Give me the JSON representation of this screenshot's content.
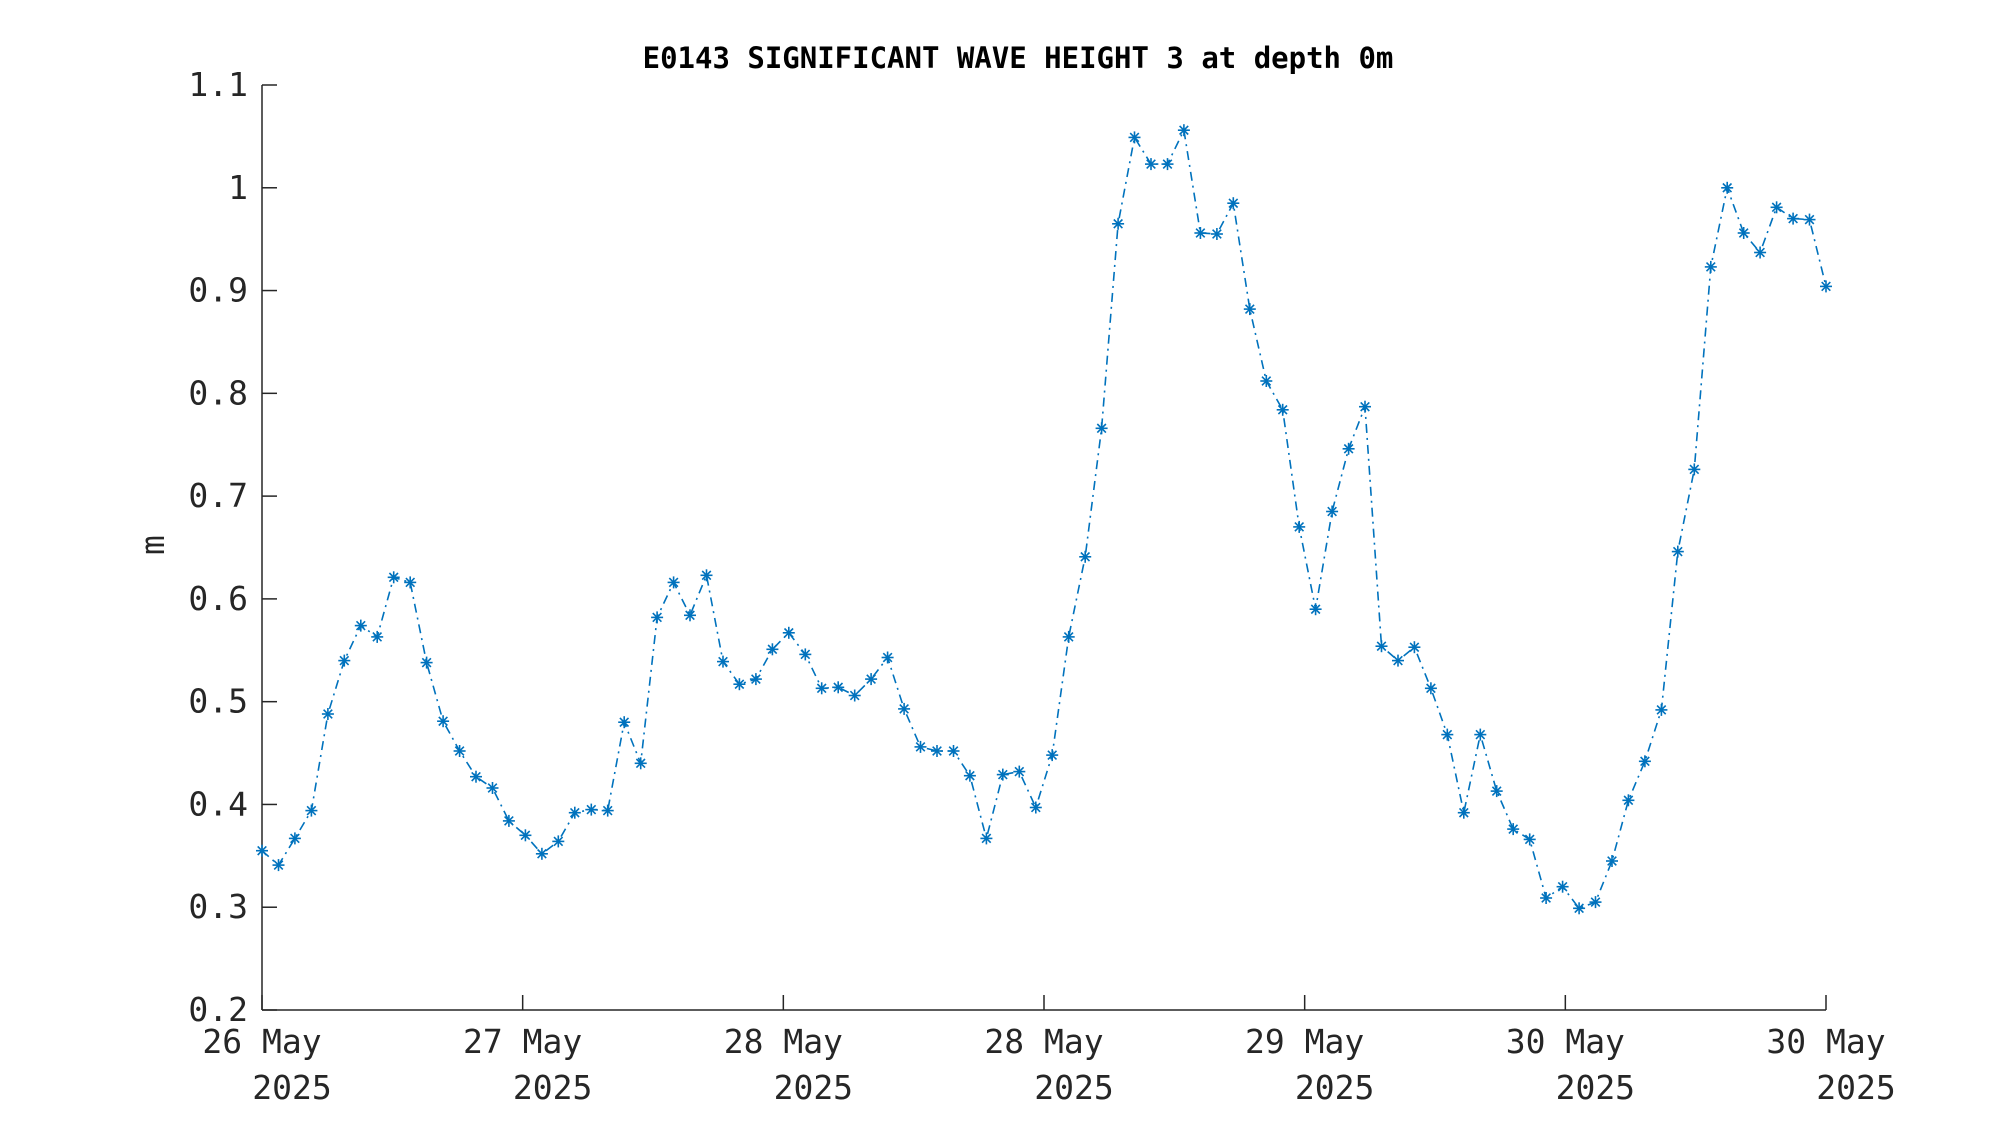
{
  "chart_data": {
    "type": "line",
    "title": "E0143 SIGNIFICANT WAVE HEIGHT 3 at depth 0m",
    "xlabel": "",
    "ylabel": "m",
    "ylim": [
      0.2,
      1.1
    ],
    "xlim": [
      "2025-05-26T00:00",
      "2025-05-32T00:00"
    ],
    "grid": false,
    "line_color": "#0072BD",
    "line_style": "dash-dot",
    "marker": "asterisk",
    "y_ticks": [
      "0.2",
      "0.3",
      "0.4",
      "0.5",
      "0.6",
      "0.7",
      "0.8",
      "0.9",
      "1",
      "1.1"
    ],
    "x_ticks": [
      {
        "day": "26 May",
        "year": "2025"
      },
      {
        "day": "27 May",
        "year": "2025"
      },
      {
        "day": "28 May",
        "year": "2025"
      },
      {
        "day": "28 May",
        "year": "2025"
      },
      {
        "day": "29 May",
        "year": "2025"
      },
      {
        "day": "30 May",
        "year": "2025"
      },
      {
        "day": "30 May",
        "year": "2025"
      }
    ],
    "series": [
      {
        "values": [
          0.355,
          0.341,
          0.367,
          0.394,
          0.488,
          0.54,
          0.574,
          0.563,
          0.621,
          0.616,
          0.538,
          0.481,
          0.452,
          0.427,
          0.416,
          0.384,
          0.37,
          0.352,
          0.364,
          0.392,
          0.395,
          0.394,
          0.48,
          0.44,
          0.582,
          0.616,
          0.584,
          0.623,
          0.539,
          0.517,
          0.522,
          0.551,
          0.567,
          0.546,
          0.513,
          0.514,
          0.506,
          0.522,
          0.543,
          0.493,
          0.456,
          0.452,
          0.452,
          0.428,
          0.367,
          0.429,
          0.432,
          0.397,
          0.448,
          0.563,
          0.641,
          0.766,
          0.965,
          1.049,
          1.023,
          1.023,
          1.056,
          0.956,
          0.955,
          0.985,
          0.882,
          0.812,
          0.784,
          0.67,
          0.59,
          0.685,
          0.746,
          0.787,
          0.554,
          0.54,
          0.553,
          0.513,
          0.468,
          0.392,
          0.468,
          0.413,
          0.376,
          0.366,
          0.309,
          0.32,
          0.299,
          0.305,
          0.345,
          0.404,
          0.442,
          0.492,
          0.646,
          0.726,
          0.923,
          1.0,
          0.956,
          0.937,
          0.981,
          0.97,
          0.969,
          0.904
        ]
      }
    ]
  }
}
